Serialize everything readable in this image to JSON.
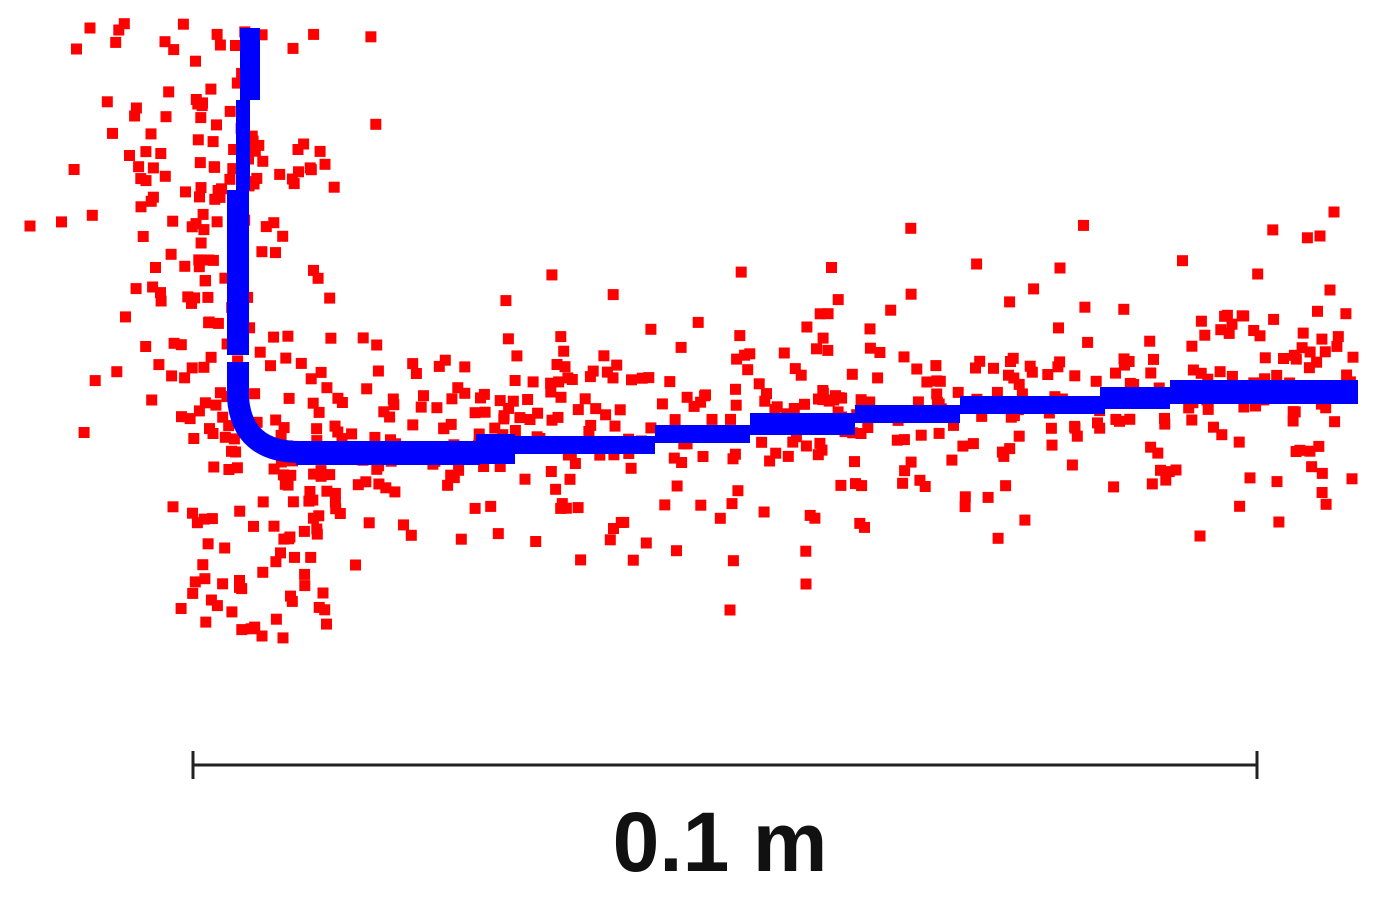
{
  "scale_bar": {
    "label": "0.1 m",
    "length_m": 0.1
  },
  "colors": {
    "noisy_points": "#ff0000",
    "fitted_profile": "#0000ff",
    "scale_bar": "#222222"
  },
  "series": [
    {
      "name": "",
      "role": "noisy-point-cloud",
      "marker": "square",
      "color": "#ff0000"
    },
    {
      "name": "",
      "role": "fitted-profile",
      "marker": "thick-line",
      "color": "#0000ff"
    }
  ]
}
